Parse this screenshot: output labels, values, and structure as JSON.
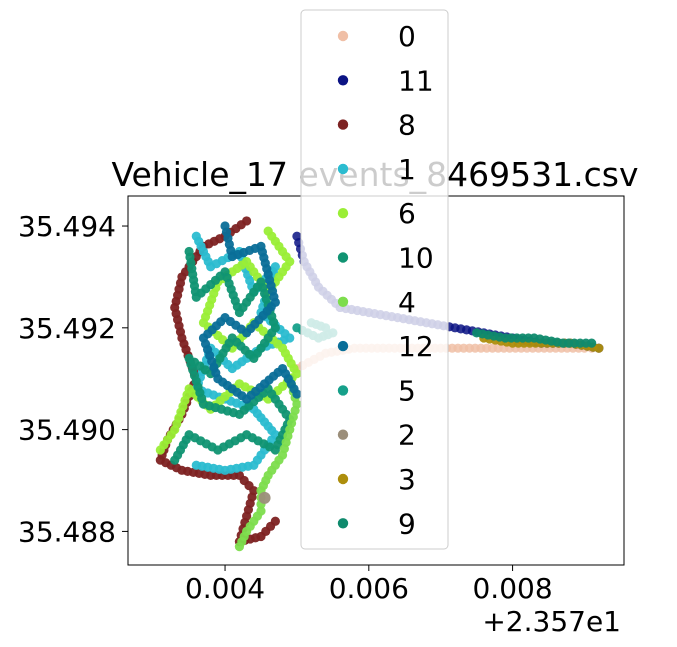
{
  "chart_data": {
    "type": "scatter",
    "title": "Vehicle_17 events_8469531.csv",
    "xlabel": "",
    "ylabel": "",
    "x_offset_label": "+2.357e1",
    "xlim": [
      0.00265,
      0.00955
    ],
    "ylim": [
      35.48734,
      35.49459
    ],
    "x_ticks": [
      0.004,
      0.006,
      0.008
    ],
    "x_tick_labels": [
      "0.004",
      "0.006",
      "0.008"
    ],
    "y_ticks": [
      35.488,
      35.49,
      35.492,
      35.494
    ],
    "y_tick_labels": [
      "35.488",
      "35.490",
      "35.492",
      "35.494"
    ],
    "grid": false,
    "legend_position": "top-center",
    "series": [
      {
        "name": "0",
        "color": "#f0bfa6",
        "route": "east"
      },
      {
        "name": "11",
        "color": "#0b1384",
        "route": "north"
      },
      {
        "name": "8",
        "color": "#7d2222",
        "route": "west"
      },
      {
        "name": "1",
        "color": "#2bbcd0",
        "route": "inner"
      },
      {
        "name": "6",
        "color": "#9aee36",
        "route": "grid"
      },
      {
        "name": "10",
        "color": "#109372",
        "route": "loops"
      },
      {
        "name": "4",
        "color": "#7ddd4d",
        "route": "south"
      },
      {
        "name": "12",
        "color": "#0a6e98",
        "route": "mid"
      },
      {
        "name": "5",
        "color": "#16a08a",
        "route": "eastloop"
      },
      {
        "name": "2",
        "color": "#9b8e7a",
        "route": "point"
      },
      {
        "name": "3",
        "color": "#ad8e0c",
        "route": "eastline"
      },
      {
        "name": "9",
        "color": "#0f8a6d",
        "route": "eastdots"
      }
    ],
    "routes": {
      "north": [
        [
          0.005,
          35.4938
        ],
        [
          0.0051,
          35.4933
        ],
        [
          0.0053,
          35.4928
        ],
        [
          0.0056,
          35.4924
        ],
        [
          0.006,
          35.4923
        ],
        [
          0.0064,
          35.4922
        ],
        [
          0.0068,
          35.4921
        ],
        [
          0.0072,
          35.492
        ],
        [
          0.0076,
          35.4919
        ],
        [
          0.008,
          35.4918
        ],
        [
          0.0084,
          35.4917
        ],
        [
          0.0088,
          35.4917
        ],
        [
          0.0092,
          35.4916
        ]
      ],
      "east": [
        [
          0.005,
          35.4912
        ],
        [
          0.0054,
          35.4915
        ],
        [
          0.0058,
          35.4916
        ],
        [
          0.0062,
          35.4916
        ],
        [
          0.0066,
          35.4916
        ],
        [
          0.007,
          35.4916
        ],
        [
          0.0074,
          35.4916
        ],
        [
          0.0078,
          35.4916
        ],
        [
          0.0082,
          35.4916
        ],
        [
          0.0086,
          35.4916
        ],
        [
          0.009,
          35.4916
        ],
        [
          0.0092,
          35.4916
        ]
      ],
      "eastline": [
        [
          0.0076,
          35.4918
        ],
        [
          0.008,
          35.4917
        ],
        [
          0.0084,
          35.4917
        ],
        [
          0.0088,
          35.4917
        ],
        [
          0.0092,
          35.4916
        ]
      ],
      "eastdots": [
        [
          0.0075,
          35.4919
        ],
        [
          0.0079,
          35.4918
        ],
        [
          0.0083,
          35.4918
        ],
        [
          0.0087,
          35.4917
        ],
        [
          0.0091,
          35.4917
        ]
      ],
      "eastloop": [
        [
          0.005,
          35.492
        ],
        [
          0.0053,
          35.4918
        ],
        [
          0.0055,
          35.4919
        ],
        [
          0.0054,
          35.492
        ],
        [
          0.0052,
          35.4921
        ]
      ],
      "west": [
        [
          0.0043,
          35.4941
        ],
        [
          0.004,
          35.4938
        ],
        [
          0.0037,
          35.4936
        ],
        [
          0.0034,
          35.493
        ],
        [
          0.0033,
          35.4924
        ],
        [
          0.0034,
          35.4918
        ],
        [
          0.0036,
          35.491
        ],
        [
          0.0034,
          35.4903
        ],
        [
          0.0032,
          35.4898
        ],
        [
          0.0031,
          35.4894
        ],
        [
          0.0034,
          35.4892
        ],
        [
          0.0038,
          35.4891
        ],
        [
          0.0042,
          35.4891
        ],
        [
          0.0044,
          35.4888
        ],
        [
          0.0043,
          35.4883
        ],
        [
          0.0042,
          35.4878
        ],
        [
          0.0045,
          35.4879
        ],
        [
          0.0047,
          35.4882
        ]
      ],
      "south": [
        [
          0.0049,
          35.491
        ],
        [
          0.005,
          35.4905
        ],
        [
          0.0049,
          35.49
        ],
        [
          0.0048,
          35.4895
        ],
        [
          0.0046,
          35.4891
        ],
        [
          0.0045,
          35.4888
        ],
        [
          0.0045,
          35.4884
        ],
        [
          0.0043,
          35.488
        ],
        [
          0.0042,
          35.4877
        ]
      ],
      "loops": [
        [
          0.0035,
          35.4935
        ],
        [
          0.0036,
          35.4926
        ],
        [
          0.004,
          35.4931
        ],
        [
          0.0042,
          35.4923
        ],
        [
          0.0045,
          35.4929
        ],
        [
          0.0047,
          35.492
        ],
        [
          0.0044,
          35.4914
        ],
        [
          0.0041,
          35.4918
        ],
        [
          0.0038,
          35.4911
        ],
        [
          0.0035,
          35.4914
        ],
        [
          0.0037,
          35.4905
        ],
        [
          0.0042,
          35.4903
        ],
        [
          0.0046,
          35.4908
        ],
        [
          0.0049,
          35.4902
        ],
        [
          0.0047,
          35.4896
        ],
        [
          0.0043,
          35.4899
        ],
        [
          0.0039,
          35.4896
        ],
        [
          0.0035,
          35.4899
        ],
        [
          0.0033,
          35.4894
        ]
      ],
      "grid": [
        [
          0.0046,
          35.4939
        ],
        [
          0.0049,
          35.4933
        ],
        [
          0.0046,
          35.4927
        ],
        [
          0.0043,
          35.4933
        ],
        [
          0.0039,
          35.4929
        ],
        [
          0.0037,
          35.4921
        ],
        [
          0.0041,
          35.4916
        ],
        [
          0.0044,
          35.4921
        ],
        [
          0.0048,
          35.4916
        ],
        [
          0.005,
          35.4911
        ],
        [
          0.0046,
          35.4906
        ],
        [
          0.0042,
          35.4909
        ],
        [
          0.0038,
          35.4904
        ],
        [
          0.0035,
          35.4908
        ],
        [
          0.0033,
          35.49
        ],
        [
          0.0031,
          35.4896
        ]
      ],
      "inner": [
        [
          0.0036,
          35.4938
        ],
        [
          0.0038,
          35.4932
        ],
        [
          0.0042,
          35.4935
        ],
        [
          0.0044,
          35.4927
        ],
        [
          0.0047,
          35.4932
        ],
        [
          0.0045,
          35.4923
        ],
        [
          0.0049,
          35.4918
        ],
        [
          0.0045,
          35.4916
        ],
        [
          0.0041,
          35.4912
        ],
        [
          0.0038,
          35.4916
        ],
        [
          0.0036,
          35.4908
        ],
        [
          0.004,
          35.4906
        ],
        [
          0.0044,
          35.4904
        ],
        [
          0.0047,
          35.4899
        ],
        [
          0.0044,
          35.4893
        ],
        [
          0.004,
          35.4892
        ],
        [
          0.0036,
          35.4893
        ]
      ],
      "mid": [
        [
          0.004,
          35.494
        ],
        [
          0.0041,
          35.4934
        ],
        [
          0.0045,
          35.4936
        ],
        [
          0.0047,
          35.4925
        ],
        [
          0.0043,
          35.4919
        ],
        [
          0.004,
          35.4922
        ],
        [
          0.0037,
          35.4918
        ],
        [
          0.0039,
          35.491
        ],
        [
          0.0043,
          35.4906
        ],
        [
          0.0048,
          35.4912
        ],
        [
          0.005,
          35.4907
        ]
      ],
      "point": [
        [
          0.00455,
          35.48866
        ]
      ]
    }
  }
}
